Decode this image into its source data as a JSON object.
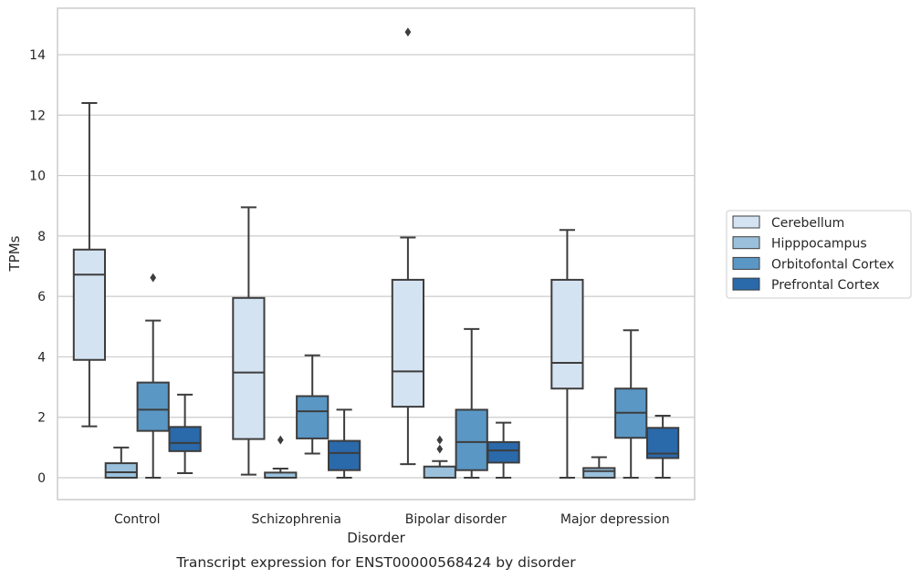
{
  "chart_data": {
    "type": "box",
    "caption": "Transcript expression for ENST00000568424 by disorder",
    "xlabel": "Disorder",
    "ylabel": "TPMs",
    "ylim": [
      -0.7,
      15.5
    ],
    "yticks": [
      0,
      2,
      4,
      6,
      8,
      10,
      12,
      14
    ],
    "grid": "horizontal",
    "legend_position": "right",
    "categories": [
      "Control",
      "Schizophrenia",
      "Bipolar disorder",
      "Major depression"
    ],
    "series": [
      {
        "name": "Cerebellum",
        "color": "#d4e3f2",
        "boxes": [
          {
            "whislo": 1.7,
            "q1": 3.9,
            "med": 6.72,
            "q3": 7.55,
            "whishi": 12.4,
            "fliers": []
          },
          {
            "whislo": 0.1,
            "q1": 1.28,
            "med": 3.48,
            "q3": 5.95,
            "whishi": 8.95,
            "fliers": []
          },
          {
            "whislo": 0.45,
            "q1": 2.35,
            "med": 3.52,
            "q3": 6.55,
            "whishi": 7.95,
            "fliers": [
              14.75
            ]
          },
          {
            "whislo": 0.0,
            "q1": 2.95,
            "med": 3.8,
            "q3": 6.55,
            "whishi": 8.2,
            "fliers": []
          }
        ]
      },
      {
        "name": "Hipppocampus",
        "color": "#9ac0dc",
        "boxes": [
          {
            "whislo": 0.0,
            "q1": 0.0,
            "med": 0.18,
            "q3": 0.48,
            "whishi": 1.0,
            "fliers": []
          },
          {
            "whislo": 0.0,
            "q1": 0.0,
            "med": 0.0,
            "q3": 0.17,
            "whishi": 0.3,
            "fliers": [
              1.25
            ]
          },
          {
            "whislo": 0.0,
            "q1": 0.0,
            "med": 0.0,
            "q3": 0.37,
            "whishi": 0.55,
            "fliers": [
              0.95,
              1.25
            ]
          },
          {
            "whislo": 0.0,
            "q1": 0.0,
            "med": 0.22,
            "q3": 0.32,
            "whishi": 0.68,
            "fliers": []
          }
        ]
      },
      {
        "name": "Orbitofontal Cortex",
        "color": "#5a97c5",
        "boxes": [
          {
            "whislo": 0.0,
            "q1": 1.55,
            "med": 2.25,
            "q3": 3.15,
            "whishi": 5.2,
            "fliers": [
              6.62
            ]
          },
          {
            "whislo": 0.8,
            "q1": 1.3,
            "med": 2.2,
            "q3": 2.7,
            "whishi": 4.05,
            "fliers": []
          },
          {
            "whislo": 0.0,
            "q1": 0.25,
            "med": 1.18,
            "q3": 2.25,
            "whishi": 4.92,
            "fliers": []
          },
          {
            "whislo": 0.0,
            "q1": 1.32,
            "med": 2.15,
            "q3": 2.95,
            "whishi": 4.88,
            "fliers": []
          }
        ]
      },
      {
        "name": "Prefrontal Cortex",
        "color": "#2a69aa",
        "boxes": [
          {
            "whislo": 0.15,
            "q1": 0.88,
            "med": 1.15,
            "q3": 1.68,
            "whishi": 2.75,
            "fliers": []
          },
          {
            "whislo": 0.0,
            "q1": 0.25,
            "med": 0.82,
            "q3": 1.22,
            "whishi": 2.25,
            "fliers": []
          },
          {
            "whislo": 0.0,
            "q1": 0.5,
            "med": 0.9,
            "q3": 1.18,
            "whishi": 1.82,
            "fliers": []
          },
          {
            "whislo": 0.0,
            "q1": 0.65,
            "med": 0.8,
            "q3": 1.65,
            "whishi": 2.05,
            "fliers": []
          }
        ]
      }
    ]
  }
}
